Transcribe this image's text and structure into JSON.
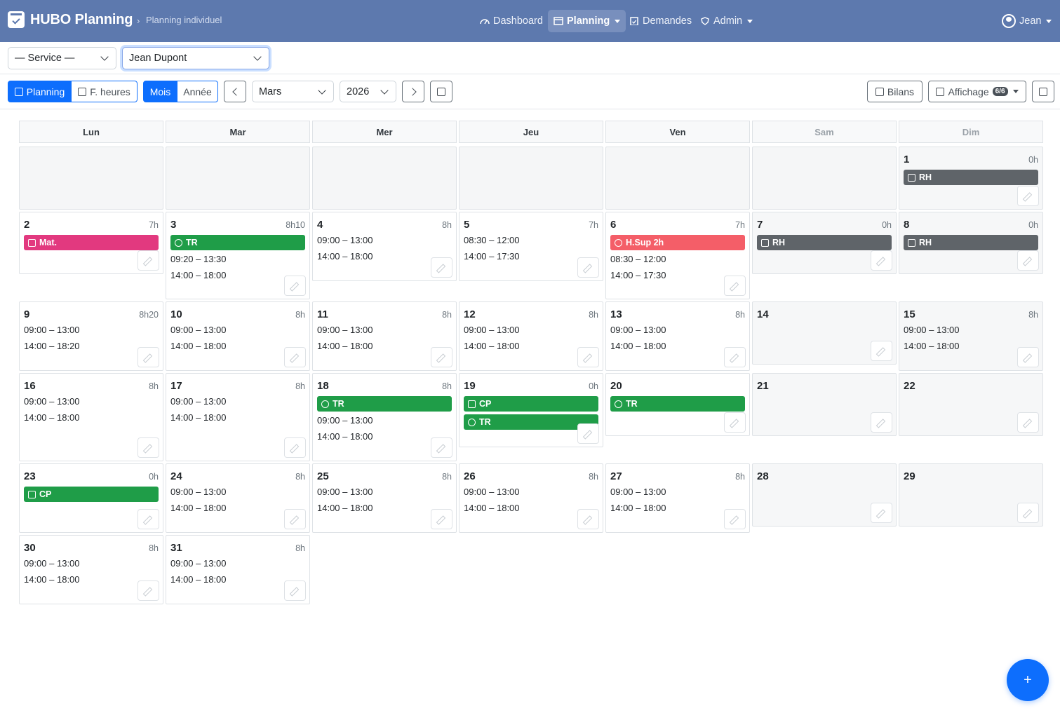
{
  "navbar": {
    "brand": "HUBO Planning",
    "breadcrumb_sep": "›",
    "breadcrumb": "Planning individuel",
    "items": [
      {
        "label": "Dashboard",
        "icon": "gauge-icon"
      },
      {
        "label": "Planning",
        "icon": "calendar-icon"
      },
      {
        "label": "Demandes",
        "icon": "clipboard-icon"
      },
      {
        "label": "Admin",
        "icon": "shield-icon"
      }
    ],
    "user": "Jean"
  },
  "filters": {
    "service": "— Service —",
    "employee": "Jean Dupont"
  },
  "toolbar": {
    "view_planning": "Planning",
    "view_hours": "F. heures",
    "mode_month": "Mois",
    "mode_year": "Année",
    "month": "Mars",
    "year": "2026",
    "bilans": "Bilans",
    "affichage": "Affichage",
    "affichage_badge": "6/6"
  },
  "colors": {
    "navbar": "#5d79ae",
    "primary": "#0d6efd",
    "event_green": "#1f9d48",
    "event_gray": "#5f6469",
    "event_pink": "#e2397f",
    "event_red": "#f45e68"
  },
  "weekdays": [
    "Lun",
    "Mar",
    "Mer",
    "Jeu",
    "Ven",
    "Sam",
    "Dim"
  ],
  "days": [
    {
      "n": "1",
      "h": "0h",
      "ev": [
        {
          "t": "RH",
          "c": "gray"
        }
      ],
      "s": []
    },
    {
      "n": "2",
      "h": "7h",
      "ev": [
        {
          "t": "Mat.",
          "c": "pink"
        }
      ],
      "s": []
    },
    {
      "n": "3",
      "h": "8h10",
      "ev": [
        {
          "t": "TR",
          "c": "green"
        }
      ],
      "s": [
        "09:20 – 13:30",
        "14:00 – 18:00"
      ]
    },
    {
      "n": "4",
      "h": "8h",
      "ev": [],
      "s": [
        "09:00 – 13:00",
        "14:00 – 18:00"
      ]
    },
    {
      "n": "5",
      "h": "7h",
      "ev": [],
      "s": [
        "08:30 – 12:00",
        "14:00 – 17:30"
      ]
    },
    {
      "n": "6",
      "h": "7h",
      "ev": [
        {
          "t": "H.Sup 2h",
          "c": "red"
        }
      ],
      "s": [
        "08:30 – 12:00",
        "14:00 – 17:30"
      ]
    },
    {
      "n": "7",
      "h": "0h",
      "ev": [
        {
          "t": "RH",
          "c": "gray"
        }
      ],
      "s": []
    },
    {
      "n": "8",
      "h": "0h",
      "ev": [
        {
          "t": "RH",
          "c": "gray"
        }
      ],
      "s": []
    },
    {
      "n": "9",
      "h": "8h20",
      "ev": [],
      "s": [
        "09:00 – 13:00",
        "14:00 – 18:20"
      ]
    },
    {
      "n": "10",
      "h": "8h",
      "ev": [],
      "s": [
        "09:00 – 13:00",
        "14:00 – 18:00"
      ]
    },
    {
      "n": "11",
      "h": "8h",
      "ev": [],
      "s": [
        "09:00 – 13:00",
        "14:00 – 18:00"
      ]
    },
    {
      "n": "12",
      "h": "8h",
      "ev": [],
      "s": [
        "09:00 – 13:00",
        "14:00 – 18:00"
      ]
    },
    {
      "n": "13",
      "h": "8h",
      "ev": [],
      "s": [
        "09:00 – 13:00",
        "14:00 – 18:00"
      ]
    },
    {
      "n": "14",
      "h": "",
      "ev": [],
      "s": []
    },
    {
      "n": "15",
      "h": "8h",
      "ev": [],
      "s": [
        "09:00 – 13:00",
        "14:00 – 18:00"
      ]
    },
    {
      "n": "16",
      "h": "8h",
      "ev": [],
      "s": [
        "09:00 – 13:00",
        "14:00 – 18:00"
      ]
    },
    {
      "n": "17",
      "h": "8h",
      "ev": [],
      "s": [
        "09:00 – 13:00",
        "14:00 – 18:00"
      ]
    },
    {
      "n": "18",
      "h": "8h",
      "ev": [
        {
          "t": "TR",
          "c": "green"
        }
      ],
      "s": [
        "09:00 – 13:00",
        "14:00 – 18:00"
      ]
    },
    {
      "n": "19",
      "h": "0h",
      "ev": [
        {
          "t": "CP",
          "c": "green"
        },
        {
          "t": "TR",
          "c": "green"
        }
      ],
      "s": []
    },
    {
      "n": "20",
      "h": "",
      "ev": [
        {
          "t": "TR",
          "c": "green"
        }
      ],
      "s": []
    },
    {
      "n": "21",
      "h": "",
      "ev": [],
      "s": []
    },
    {
      "n": "22",
      "h": "",
      "ev": [],
      "s": []
    },
    {
      "n": "23",
      "h": "0h",
      "ev": [
        {
          "t": "CP",
          "c": "green"
        }
      ],
      "s": []
    },
    {
      "n": "24",
      "h": "8h",
      "ev": [],
      "s": [
        "09:00 – 13:00",
        "14:00 – 18:00"
      ]
    },
    {
      "n": "25",
      "h": "8h",
      "ev": [],
      "s": [
        "09:00 – 13:00",
        "14:00 – 18:00"
      ]
    },
    {
      "n": "26",
      "h": "8h",
      "ev": [],
      "s": [
        "09:00 – 13:00",
        "14:00 – 18:00"
      ]
    },
    {
      "n": "27",
      "h": "8h",
      "ev": [],
      "s": [
        "09:00 – 13:00",
        "14:00 – 18:00"
      ]
    },
    {
      "n": "28",
      "h": "",
      "ev": [],
      "s": []
    },
    {
      "n": "29",
      "h": "",
      "ev": [],
      "s": []
    },
    {
      "n": "30",
      "h": "8h",
      "ev": [],
      "s": [
        "09:00 – 13:00",
        "14:00 – 18:00"
      ]
    },
    {
      "n": "31",
      "h": "8h",
      "ev": [],
      "s": [
        "09:00 – 13:00",
        "14:00 – 18:00"
      ]
    }
  ],
  "fab": "+"
}
